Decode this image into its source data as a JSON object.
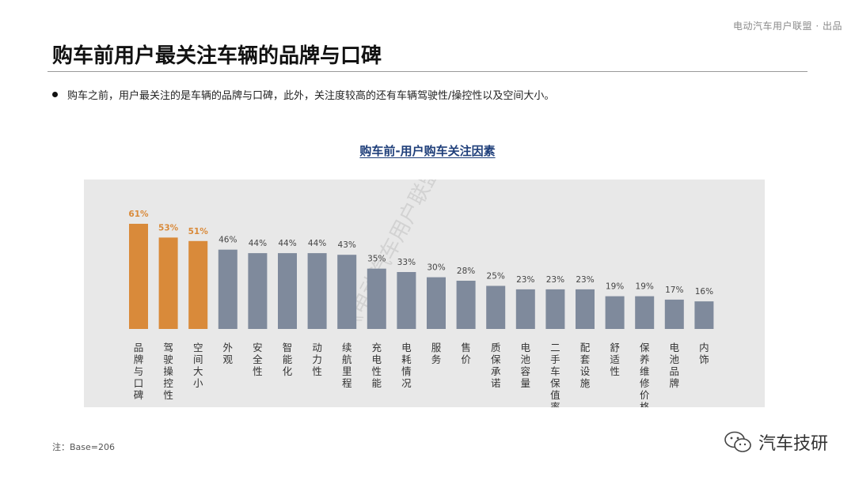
{
  "header": {
    "source_tag": "电动汽车用户联盟 · 出品",
    "title": "购车前用户最关注车辆的品牌与口碑"
  },
  "bullet": "购车之前，用户最关注的是车辆的品牌与口碑，此外，关注度较高的还有车辆驾驶性/操控性以及空间大小。",
  "watermark": "《电动汽车用户联盟》",
  "footnote": "注：Base=206",
  "brand": {
    "name": "汽车技研",
    "icon": "wechat-icon"
  },
  "colors": {
    "highlight": "#d98a3a",
    "normal": "#7f8a9c",
    "panel": "#e8e8e8",
    "title": "#1f3f7a"
  },
  "chart_data": {
    "type": "bar",
    "title": "购车前-用户购车关注因素",
    "categories": [
      "品牌与口碑",
      "驾驶操控性",
      "空间大小",
      "外观",
      "安全性",
      "智能化",
      "动力性",
      "续航里程",
      "充电性能",
      "电耗情况",
      "服务",
      "售价",
      "质保承诺",
      "电池容量",
      "二手车保值率",
      "配套设施",
      "舒适性",
      "保养维修价格",
      "电池品牌",
      "内饰"
    ],
    "values": [
      61,
      53,
      51,
      46,
      44,
      44,
      44,
      43,
      35,
      33,
      30,
      28,
      25,
      23,
      23,
      23,
      19,
      19,
      17,
      16
    ],
    "value_labels": [
      "61%",
      "53%",
      "51%",
      "46%",
      "44%",
      "44%",
      "44%",
      "43%",
      "35%",
      "33%",
      "30%",
      "28%",
      "25%",
      "23%",
      "23%",
      "23%",
      "19%",
      "19%",
      "17%",
      "16%"
    ],
    "highlighted": [
      0,
      1,
      2
    ],
    "xlabel": "",
    "ylabel": "",
    "ylim": [
      0,
      70
    ],
    "grid": false
  }
}
